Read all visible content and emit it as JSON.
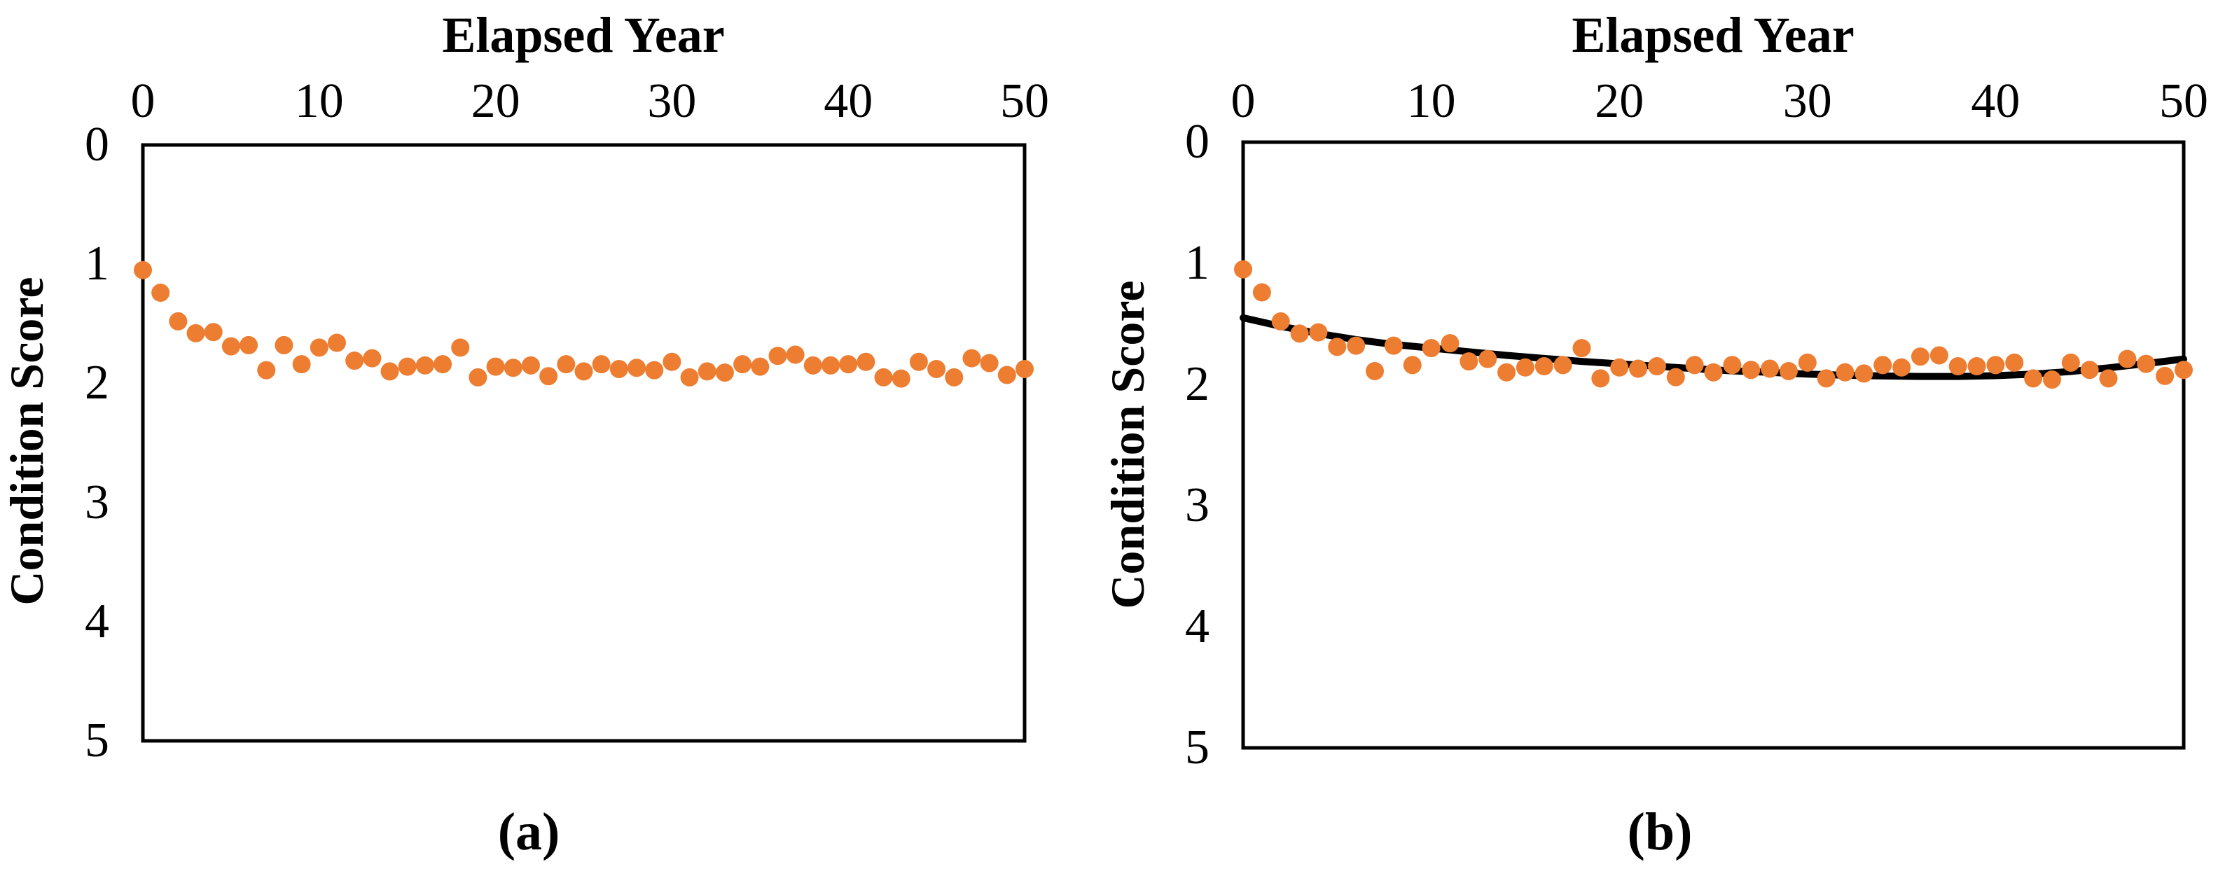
{
  "figure": {
    "background": "#ffffff",
    "text_color": "#000000",
    "border_color": "#000000"
  },
  "chart_data": [
    {
      "type": "scatter",
      "caption": "(a)",
      "xlabel": "Elapsed Year",
      "ylabel": "Condition Score",
      "x_ticks": [
        0,
        10,
        20,
        30,
        40,
        50
      ],
      "y_ticks": [
        0,
        1,
        2,
        3,
        4,
        5
      ],
      "xlim": [
        0,
        50
      ],
      "ylim": [
        0,
        5
      ],
      "y_axis_inverted": true,
      "grid": false,
      "legend": "none",
      "marker_color": "#ED7D31",
      "x": [
        0,
        1,
        2,
        3,
        4,
        5,
        6,
        7,
        8,
        9,
        10,
        11,
        12,
        13,
        14,
        15,
        16,
        17,
        18,
        19,
        20,
        21,
        22,
        23,
        24,
        25,
        26,
        27,
        28,
        29,
        30,
        31,
        32,
        33,
        34,
        35,
        36,
        37,
        38,
        39,
        40,
        41,
        42,
        43,
        44,
        45,
        46,
        47,
        48,
        49,
        50
      ],
      "y": [
        1.05,
        1.24,
        1.48,
        1.58,
        1.57,
        1.69,
        1.68,
        1.89,
        1.68,
        1.84,
        1.7,
        1.66,
        1.81,
        1.79,
        1.9,
        1.86,
        1.85,
        1.84,
        1.7,
        1.95,
        1.86,
        1.87,
        1.85,
        1.94,
        1.84,
        1.9,
        1.84,
        1.88,
        1.87,
        1.89,
        1.82,
        1.95,
        1.9,
        1.91,
        1.84,
        1.86,
        1.77,
        1.76,
        1.85,
        1.85,
        1.84,
        1.82,
        1.95,
        1.96,
        1.82,
        1.88,
        1.95,
        1.79,
        1.83,
        1.93,
        1.88
      ]
    },
    {
      "type": "scatter",
      "caption": "(b)",
      "xlabel": "Elapsed Year",
      "ylabel": "Condition Score",
      "x_ticks": [
        0,
        10,
        20,
        30,
        40,
        50
      ],
      "y_ticks": [
        0,
        1,
        2,
        3,
        4,
        5
      ],
      "xlim": [
        0,
        50
      ],
      "ylim": [
        0,
        5
      ],
      "y_axis_inverted": true,
      "grid": false,
      "legend": "none",
      "marker_color": "#ED7D31",
      "x": [
        0,
        1,
        2,
        3,
        4,
        5,
        6,
        7,
        8,
        9,
        10,
        11,
        12,
        13,
        14,
        15,
        16,
        17,
        18,
        19,
        20,
        21,
        22,
        23,
        24,
        25,
        26,
        27,
        28,
        29,
        30,
        31,
        32,
        33,
        34,
        35,
        36,
        37,
        38,
        39,
        40,
        41,
        42,
        43,
        44,
        45,
        46,
        47,
        48,
        49,
        50
      ],
      "y": [
        1.05,
        1.24,
        1.48,
        1.58,
        1.57,
        1.69,
        1.68,
        1.89,
        1.68,
        1.84,
        1.7,
        1.66,
        1.81,
        1.79,
        1.9,
        1.86,
        1.85,
        1.84,
        1.7,
        1.95,
        1.86,
        1.87,
        1.85,
        1.94,
        1.84,
        1.9,
        1.84,
        1.88,
        1.87,
        1.89,
        1.82,
        1.95,
        1.9,
        1.91,
        1.84,
        1.86,
        1.77,
        1.76,
        1.85,
        1.85,
        1.84,
        1.82,
        1.95,
        1.96,
        1.82,
        1.88,
        1.95,
        1.79,
        1.83,
        1.93,
        1.88
      ],
      "fit_curve": {
        "color": "#000000",
        "stroke_width": 10,
        "x": [
          0,
          2,
          4,
          6,
          8,
          10,
          12,
          14,
          16,
          18,
          20,
          22,
          24,
          26,
          28,
          30,
          32,
          34,
          36,
          38,
          40,
          42,
          44,
          46,
          48,
          50
        ],
        "y": [
          1.45,
          1.52,
          1.58,
          1.63,
          1.67,
          1.7,
          1.73,
          1.76,
          1.785,
          1.81,
          1.83,
          1.85,
          1.87,
          1.888,
          1.9,
          1.915,
          1.924,
          1.93,
          1.934,
          1.934,
          1.928,
          1.915,
          1.893,
          1.863,
          1.828,
          1.79
        ]
      }
    }
  ]
}
